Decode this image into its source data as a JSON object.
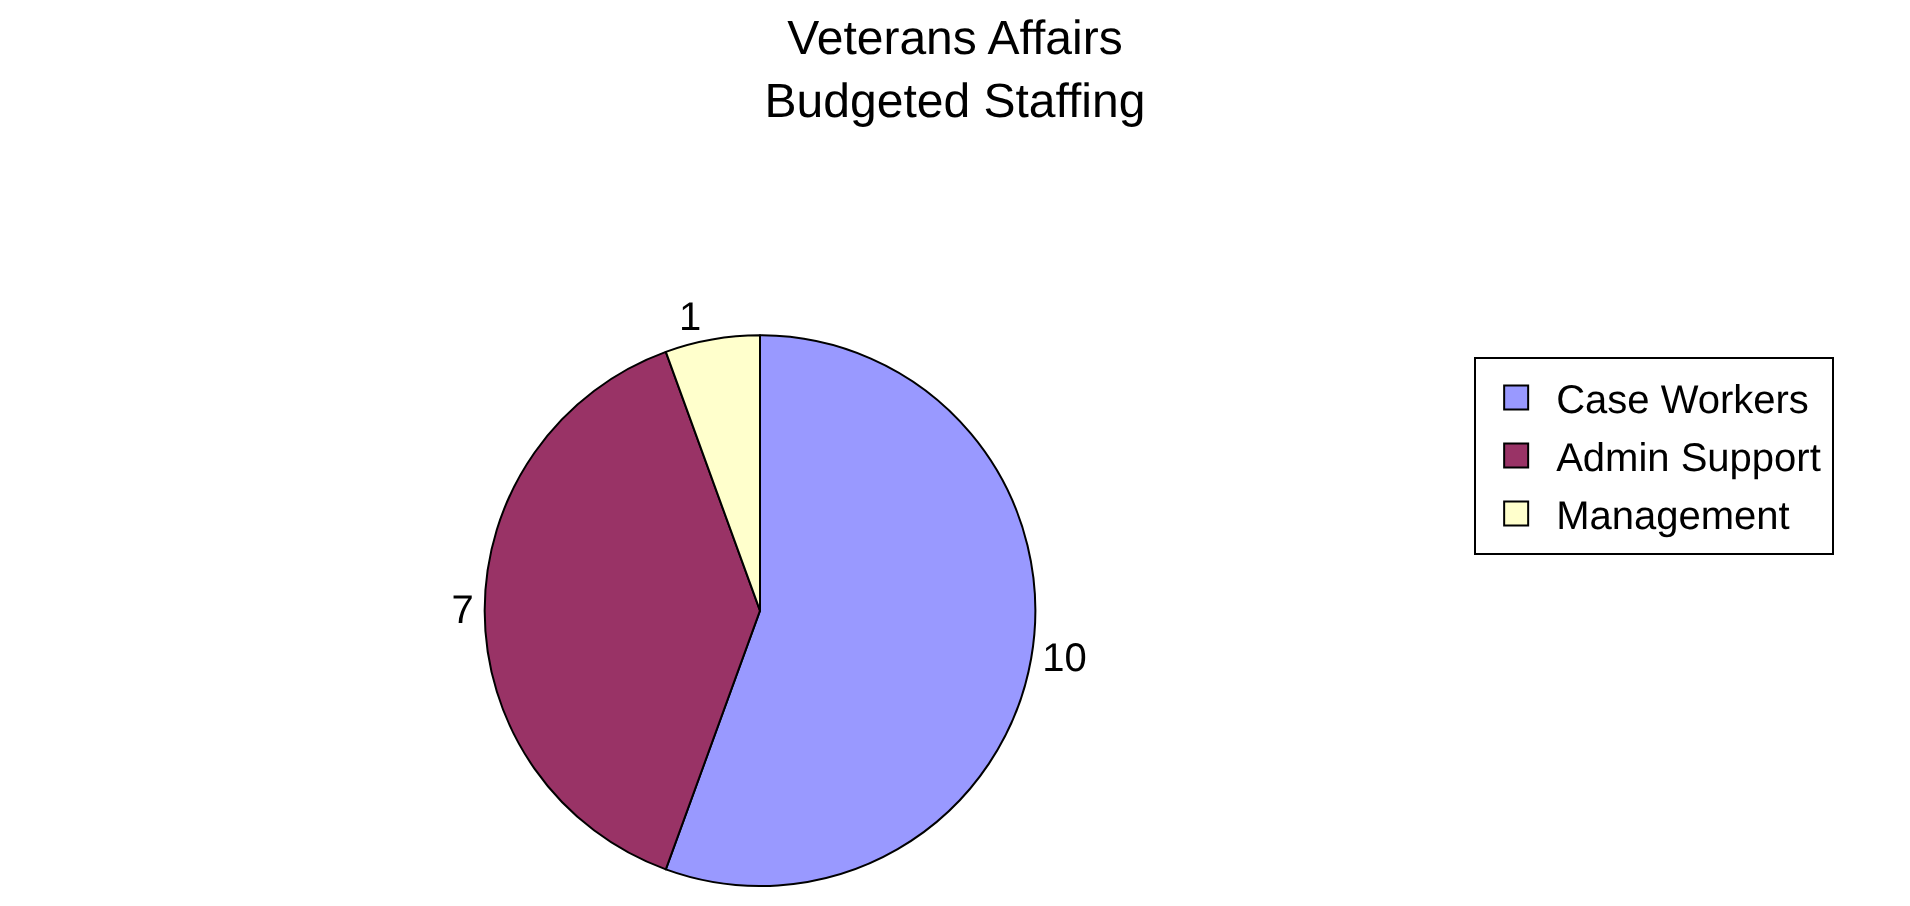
{
  "chart_data": {
    "type": "pie",
    "title": "Veterans Affairs\nBudgeted Staffing",
    "categories": [
      "Case Workers",
      "Admin Support",
      "Management"
    ],
    "values": [
      10,
      7,
      1
    ],
    "colors": [
      "#9999ff",
      "#993366",
      "#ffffcc"
    ],
    "data_labels": true,
    "legend": "right"
  }
}
